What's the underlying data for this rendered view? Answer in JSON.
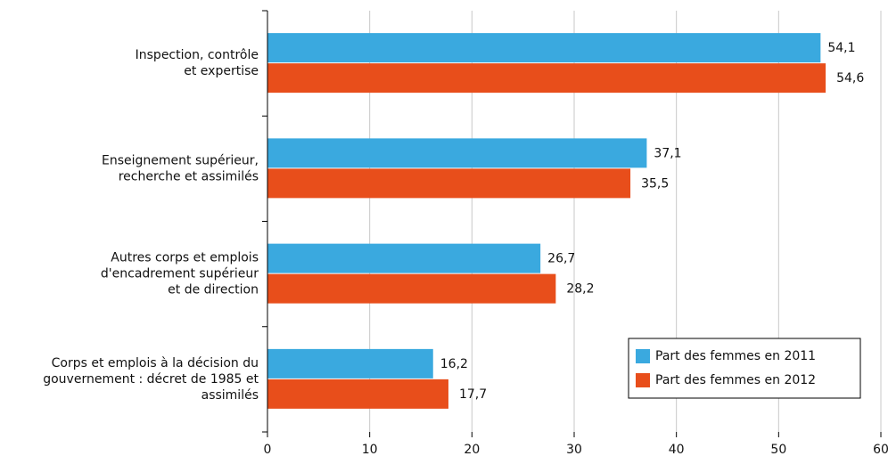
{
  "chart_data": {
    "type": "bar",
    "orientation": "horizontal",
    "categories": [
      "Inspection, contrôle\net expertise",
      "Enseignement supérieur,\nrecherche et assimilés",
      "Autres corps et emplois\nd'encadrement supérieur\net de direction",
      "Corps et emplois à la décision du\ngouvernement : décret de 1985 et\nassimilés"
    ],
    "series": [
      {
        "name": "Part des femmes en 2011",
        "color": "#3aa9df",
        "values": [
          54.1,
          37.1,
          26.7,
          16.2
        ],
        "value_labels": [
          "54,1",
          "37,1",
          "26,7",
          "16,2"
        ]
      },
      {
        "name": "Part des femmes en 2012",
        "color": "#e84e1b",
        "values": [
          54.6,
          35.5,
          28.2,
          17.7
        ],
        "value_labels": [
          "54,6",
          "35,5",
          "28,2",
          "17,7"
        ]
      }
    ],
    "xlim": [
      0,
      60
    ],
    "xticks": [
      0,
      10,
      20,
      30,
      40,
      50,
      60
    ],
    "grid": true,
    "legend": "lower right"
  }
}
